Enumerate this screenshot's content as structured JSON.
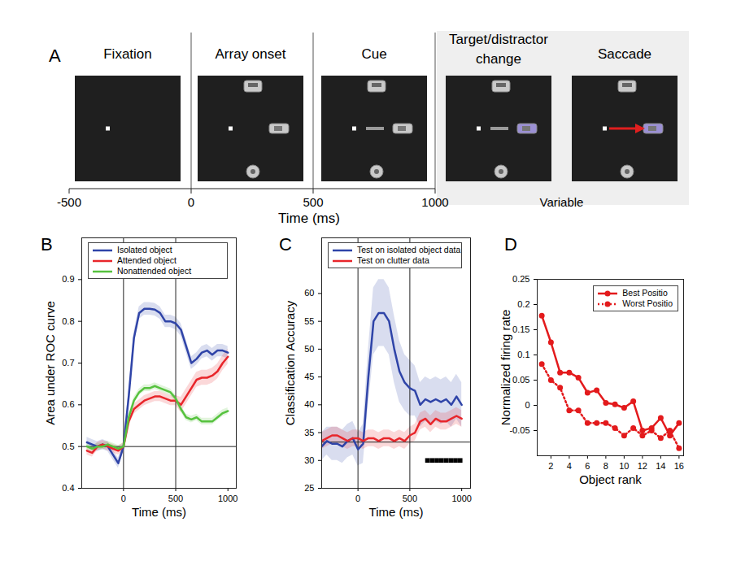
{
  "chart_data": [
    {
      "type": "timeline",
      "title": "A",
      "stages": [
        "Fixation",
        "Array onset",
        "Cue",
        "Target/distractor change",
        "Saccade"
      ],
      "xlabel": "Time (ms)",
      "xlim": [
        -500,
        1000
      ],
      "xticks": [
        -500,
        0,
        500,
        1000
      ],
      "annotations": [
        "Variable"
      ]
    },
    {
      "type": "line",
      "title": "B",
      "xlabel": "Time (ms)",
      "ylabel": "Area under ROC curve",
      "x": [
        -350,
        -300,
        -250,
        -200,
        -150,
        -100,
        -50,
        0,
        50,
        100,
        150,
        200,
        250,
        300,
        350,
        400,
        450,
        500,
        550,
        600,
        650,
        700,
        750,
        800,
        850,
        900,
        950,
        1000
      ],
      "xlim": [
        -400,
        1080
      ],
      "xticks": [
        0,
        500,
        1000
      ],
      "ylim": [
        0.4,
        1.0
      ],
      "yticks": [
        0.4,
        0.5,
        0.6,
        0.7,
        0.8,
        0.9
      ],
      "reference_lines": {
        "x": [
          0,
          500
        ],
        "y": [
          0.5
        ]
      },
      "legend": "top",
      "series": [
        {
          "name": "Isolated object",
          "color": "#2f44a8",
          "values": [
            0.51,
            0.505,
            0.5,
            0.505,
            0.5,
            0.48,
            0.46,
            0.5,
            0.62,
            0.76,
            0.82,
            0.83,
            0.83,
            0.828,
            0.82,
            0.8,
            0.8,
            0.795,
            0.78,
            0.74,
            0.7,
            0.71,
            0.725,
            0.73,
            0.72,
            0.73,
            0.73,
            0.725
          ],
          "error": [
            0.012,
            0.012,
            0.012,
            0.012,
            0.012,
            0.012,
            0.012,
            0.012,
            0.015,
            0.015,
            0.015,
            0.015,
            0.015,
            0.015,
            0.015,
            0.015,
            0.015,
            0.015,
            0.015,
            0.015,
            0.015,
            0.015,
            0.015,
            0.015,
            0.015,
            0.015,
            0.015,
            0.015
          ]
        },
        {
          "name": "Attended object",
          "color": "#e8262b",
          "values": [
            0.49,
            0.485,
            0.5,
            0.505,
            0.5,
            0.495,
            0.49,
            0.5,
            0.56,
            0.59,
            0.6,
            0.61,
            0.615,
            0.62,
            0.62,
            0.615,
            0.61,
            0.61,
            0.6,
            0.62,
            0.64,
            0.66,
            0.665,
            0.665,
            0.67,
            0.68,
            0.7,
            0.715
          ],
          "error": [
            0.01,
            0.01,
            0.01,
            0.01,
            0.01,
            0.01,
            0.01,
            0.01,
            0.012,
            0.012,
            0.012,
            0.012,
            0.012,
            0.012,
            0.012,
            0.012,
            0.012,
            0.012,
            0.018,
            0.018,
            0.018,
            0.018,
            0.018,
            0.018,
            0.018,
            0.018,
            0.018,
            0.018
          ]
        },
        {
          "name": "Nonattended object",
          "color": "#56c23e",
          "values": [
            0.5,
            0.495,
            0.5,
            0.5,
            0.505,
            0.5,
            0.495,
            0.5,
            0.57,
            0.61,
            0.63,
            0.64,
            0.64,
            0.645,
            0.64,
            0.635,
            0.63,
            0.615,
            0.59,
            0.57,
            0.565,
            0.57,
            0.56,
            0.56,
            0.56,
            0.57,
            0.58,
            0.585
          ],
          "error": [
            0.008,
            0.008,
            0.008,
            0.008,
            0.008,
            0.008,
            0.008,
            0.008,
            0.008,
            0.008,
            0.008,
            0.008,
            0.008,
            0.008,
            0.008,
            0.008,
            0.008,
            0.008,
            0.008,
            0.008,
            0.008,
            0.008,
            0.008,
            0.008,
            0.008,
            0.008,
            0.008,
            0.008
          ]
        }
      ]
    },
    {
      "type": "line",
      "title": "C",
      "xlabel": "Time (ms)",
      "ylabel": "Classification Accuracy",
      "x": [
        -350,
        -300,
        -250,
        -200,
        -150,
        -100,
        -50,
        0,
        50,
        100,
        150,
        200,
        250,
        300,
        350,
        400,
        450,
        500,
        550,
        600,
        650,
        700,
        750,
        800,
        850,
        900,
        950,
        1000
      ],
      "xlim": [
        -350,
        1085
      ],
      "xticks": [
        0,
        500,
        1000
      ],
      "ylim": [
        25,
        70
      ],
      "yticks": [
        25,
        30,
        35,
        40,
        45,
        50,
        55,
        60
      ],
      "reference_lines": {
        "x": [
          0,
          500
        ],
        "y": [
          33.3
        ]
      },
      "significance": {
        "x": [
          670,
          715,
          760,
          805,
          850,
          895,
          940,
          985
        ],
        "y": 30
      },
      "legend": "top",
      "series": [
        {
          "name": "Test on isolated object data",
          "color": "#2f44a8",
          "values": [
            32.5,
            33.5,
            33,
            33,
            32.5,
            33.5,
            34,
            32,
            33,
            45,
            55,
            56.5,
            56.5,
            55,
            50,
            46,
            44,
            43,
            42.5,
            40,
            41,
            40.5,
            41,
            40.5,
            41,
            40,
            41.5,
            40
          ],
          "error": [
            2.5,
            2.5,
            3,
            3,
            3,
            3,
            3,
            3,
            3.5,
            5,
            6,
            6,
            6,
            6,
            6,
            5.5,
            5,
            5,
            4.5,
            4,
            4,
            4,
            4,
            4,
            4,
            4,
            4,
            4
          ]
        },
        {
          "name": "Test on clutter data",
          "color": "#e8262b",
          "values": [
            33.5,
            34,
            34.5,
            34.5,
            34,
            33.5,
            34,
            34,
            33.5,
            34,
            34,
            33.5,
            34,
            34,
            33.5,
            34,
            33.5,
            34.5,
            35,
            37,
            37.5,
            36.5,
            37.5,
            37,
            37,
            37.5,
            38,
            37.5
          ],
          "error": [
            1.5,
            1.5,
            1.5,
            1.5,
            1.5,
            1.5,
            1.5,
            1.5,
            1.5,
            1.5,
            1.5,
            1.5,
            1.5,
            1.5,
            1.5,
            1.5,
            1.5,
            1.5,
            1.5,
            1.5,
            1.5,
            1.5,
            1.5,
            1.5,
            1.5,
            1.5,
            1.5,
            1.5
          ]
        }
      ]
    },
    {
      "type": "line",
      "title": "D",
      "xlabel": "Object rank",
      "ylabel": "Normalized firing rate",
      "x": [
        1,
        2,
        3,
        4,
        5,
        6,
        7,
        8,
        9,
        10,
        11,
        12,
        13,
        14,
        15,
        16
      ],
      "xlim": [
        0.5,
        16.5
      ],
      "xticks": [
        2,
        4,
        6,
        8,
        10,
        12,
        14,
        16
      ],
      "ylim": [
        -0.1,
        0.25
      ],
      "yticks": [
        -0.05,
        0,
        0.05,
        0.1,
        0.15,
        0.2,
        0.25
      ],
      "legend": "top-right",
      "series": [
        {
          "name": "Best Positio",
          "color": "#e31a1c",
          "marker": "circle",
          "line_style": "solid",
          "values": [
            0.178,
            0.125,
            0.065,
            0.065,
            0.055,
            0.025,
            0.03,
            0.005,
            0.002,
            -0.005,
            0.008,
            -0.05,
            -0.045,
            -0.025,
            -0.06,
            -0.035
          ]
        },
        {
          "name": "Worst Positio",
          "color": "#e31a1c",
          "marker": "circle",
          "line_style": "dotted",
          "values": [
            0.082,
            0.05,
            0.035,
            -0.01,
            -0.01,
            -0.035,
            -0.035,
            -0.035,
            -0.045,
            -0.06,
            -0.045,
            -0.06,
            -0.05,
            -0.065,
            -0.05,
            -0.085
          ]
        }
      ]
    }
  ]
}
